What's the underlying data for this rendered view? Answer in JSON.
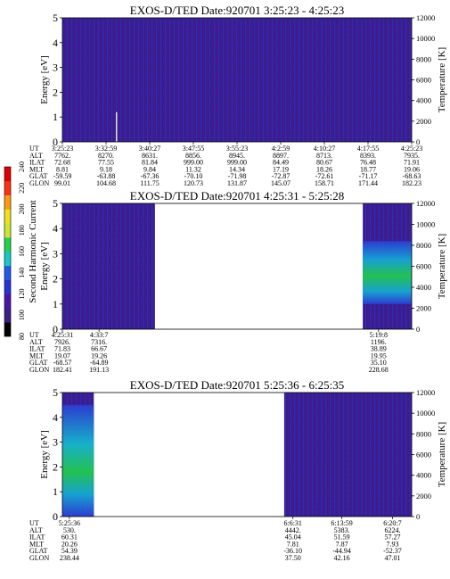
{
  "colors": {
    "background_dark_purple": "#3a1d8a",
    "mid_blue": "#1f3fd8",
    "cyan": "#13c9c9",
    "green": "#22d24a",
    "no_data": "#ffffff"
  },
  "colorbar": {
    "label": "Second Harmonic Current",
    "ticks": [
      "80",
      "100",
      "120",
      "140",
      "160",
      "180",
      "200",
      "220",
      "240"
    ],
    "range": [
      80,
      240
    ],
    "colors": [
      "#000000",
      "#3a1d8a",
      "#4b14a8",
      "#2a2fd8",
      "#1f5ae8",
      "#13c9c9",
      "#22d24a",
      "#c8e830",
      "#f0e020",
      "#ff9a10",
      "#ff3010",
      "#e00000"
    ]
  },
  "orbit_row_labels": [
    "UT",
    "ALT",
    "ILAT",
    "MLT",
    "GLAT",
    "GLON"
  ],
  "chart_data": [
    {
      "type": "heatmap",
      "title": "EXOS-D/TED   Date:920701   3:25:23 - 4:25:23",
      "ylabel": "Energy [eV]",
      "y2label": "Temperature [K]",
      "ylim": [
        0,
        5
      ],
      "y2lim": [
        0,
        12000
      ],
      "yticks": [
        "0",
        "1",
        "2",
        "3",
        "4",
        "5"
      ],
      "y2ticks": [
        "0",
        "2000",
        "4000",
        "6000",
        "8000",
        "10000",
        "12000"
      ],
      "coverage": [
        [
          0,
          1
        ]
      ],
      "features": [
        {
          "type": "spike",
          "x_frac": 0.155,
          "energy": [
            0,
            1.2
          ]
        }
      ],
      "orbit_columns": [
        {
          "UT": "3:25:23",
          "ALT": "7762.",
          "ILAT": "72.68",
          "MLT": "8.81",
          "GLAT": "-59.59",
          "GLON": "99.01"
        },
        {
          "UT": "3:32:59",
          "ALT": "8270.",
          "ILAT": "77.55",
          "MLT": "9.18",
          "GLAT": "-63.88",
          "GLON": "104.68"
        },
        {
          "UT": "3:40:27",
          "ALT": "8631.",
          "ILAT": "81.84",
          "MLT": "9.84",
          "GLAT": "-67.36",
          "GLON": "111.75"
        },
        {
          "UT": "3:47:55",
          "ALT": "8856.",
          "ILAT": "999.00",
          "MLT": "11.32",
          "GLAT": "-70.10",
          "GLON": "120.73"
        },
        {
          "UT": "3:55:23",
          "ALT": "8945.",
          "ILAT": "999.00",
          "MLT": "14.34",
          "GLAT": "-71.98",
          "GLON": "131.87"
        },
        {
          "UT": "4:2:59",
          "ALT": "8897.",
          "ILAT": "84.49",
          "MLT": "17.19",
          "GLAT": "-72.87",
          "GLON": "145.07"
        },
        {
          "UT": "4:10:27",
          "ALT": "8713.",
          "ILAT": "80.67",
          "MLT": "18.26",
          "GLAT": "-72.61",
          "GLON": "158.71"
        },
        {
          "UT": "4:17:55",
          "ALT": "8393.",
          "ILAT": "76.48",
          "MLT": "18.77",
          "GLAT": "-71.17",
          "GLON": "171.44"
        },
        {
          "UT": "4:25:23",
          "ALT": "7935.",
          "ILAT": "71.91",
          "MLT": "19.06",
          "GLAT": "-68.63",
          "GLON": "182.23"
        }
      ]
    },
    {
      "type": "heatmap",
      "title": "EXOS-D/TED   Date:920701   4:25:31 - 5:25:28",
      "ylabel": "Energy [eV]",
      "y2label": "Temperature [K]",
      "ylim": [
        0,
        5
      ],
      "y2lim": [
        0,
        12000
      ],
      "yticks": [
        "0",
        "1",
        "2",
        "3",
        "4",
        "5"
      ],
      "y2ticks": [
        "0",
        "2000",
        "4000",
        "6000",
        "8000",
        "10000",
        "12000"
      ],
      "coverage": [
        [
          0,
          0.265
        ],
        [
          0.86,
          1
        ]
      ],
      "features": [
        {
          "type": "enhancement",
          "x_range": [
            0.86,
            1
          ],
          "energy": [
            1,
            3.5
          ],
          "peak": "green"
        }
      ],
      "orbit_columns": [
        {
          "UT": "4:25:31",
          "ALT": "7926.",
          "ILAT": "71.83",
          "MLT": "19.07",
          "GLAT": "-68.57",
          "GLON": "182.41"
        },
        {
          "UT": "4:33:7",
          "ALT": "7316.",
          "ILAT": "66.67",
          "MLT": "19.26",
          "GLAT": "-64.89",
          "GLON": "191.13"
        },
        {
          "UT": "5:19:8",
          "ALT": "1196.",
          "ILAT": "38.89",
          "MLT": "19.95",
          "GLAT": "35.10",
          "GLON": "228.68"
        }
      ]
    },
    {
      "type": "heatmap",
      "title": "EXOS-D/TED   Date:920701   5:25:36 - 6:25:35",
      "ylabel": "Energy [eV]",
      "y2label": "Temperature [K]",
      "ylim": [
        0,
        5
      ],
      "y2lim": [
        0,
        12000
      ],
      "yticks": [
        "0",
        "1",
        "2",
        "3",
        "4",
        "5"
      ],
      "y2ticks": [
        "0",
        "2000",
        "4000",
        "6000",
        "8000",
        "10000",
        "12000"
      ],
      "coverage": [
        [
          0,
          0.09
        ],
        [
          0.635,
          1
        ]
      ],
      "features": [
        {
          "type": "enhancement",
          "x_range": [
            0,
            0.09
          ],
          "energy": [
            0,
            4.5
          ],
          "peak": "green"
        }
      ],
      "orbit_columns": [
        {
          "UT": "5:25:36",
          "ALT": "530.",
          "ILAT": "60.31",
          "MLT": "20.26",
          "GLAT": "54.39",
          "GLON": "238.44"
        },
        {
          "UT": "6:6:31",
          "ALT": "4442.",
          "ILAT": "45.04",
          "MLT": "7.81",
          "GLAT": "-36.10",
          "GLON": "37.50"
        },
        {
          "UT": "6:13:59",
          "ALT": "5383.",
          "ILAT": "51.59",
          "MLT": "7.87",
          "GLAT": "-44.94",
          "GLON": "42.16"
        },
        {
          "UT": "6:20:7",
          "ALT": "6224.",
          "ILAT": "57.27",
          "MLT": "7.93",
          "GLAT": "-52.37",
          "GLON": "47.01"
        }
      ]
    }
  ]
}
